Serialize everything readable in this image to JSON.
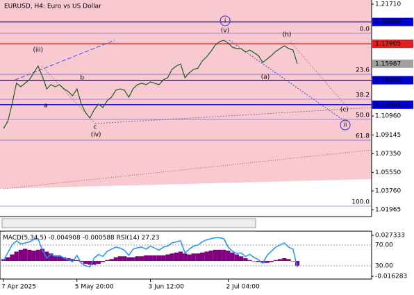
{
  "chart_data": [
    {
      "type": "line",
      "title": "EURUSD, H4:  Euro vs US Dollar",
      "categories": [
        "7 Apr 2025",
        null,
        null,
        null,
        null,
        null,
        null,
        null,
        null,
        null,
        null,
        null,
        null,
        null,
        null,
        null,
        null,
        "5 May 20:00",
        null,
        null,
        null,
        null,
        null,
        null,
        null,
        null,
        null,
        null,
        null,
        null,
        null,
        null,
        null,
        null,
        "3 Jun 12:00",
        null,
        null,
        null,
        null,
        null,
        null,
        null,
        null,
        null,
        null,
        null,
        null,
        null,
        null,
        null,
        null,
        null,
        "2 Jul 04:00",
        null,
        null,
        null,
        null,
        null,
        null,
        null,
        null,
        null,
        null,
        null,
        null,
        null,
        null,
        null,
        null
      ],
      "values": [
        1.0977,
        1.1044,
        1.1211,
        1.1411,
        1.1377,
        1.1411,
        1.1444,
        1.1511,
        1.1577,
        1.1477,
        1.1357,
        1.1397,
        1.1377,
        1.1397,
        1.1357,
        1.1331,
        1.1291,
        1.1357,
        1.1211,
        1.113,
        1.1077,
        1.1157,
        1.1211,
        1.1177,
        1.1244,
        1.1277,
        1.1344,
        1.1357,
        1.1344,
        1.1277,
        1.1357,
        1.1397,
        1.1411,
        1.1397,
        1.1424,
        1.1411,
        1.1397,
        1.1444,
        1.1464,
        1.1544,
        1.1577,
        1.1597,
        1.1464,
        1.1511,
        1.1544,
        1.1557,
        1.1624,
        1.1664,
        1.1717,
        1.1777,
        1.1811,
        1.1824,
        1.1797,
        1.1757,
        1.1744,
        1.1744,
        1.1711,
        1.1731,
        1.1704,
        1.1677,
        1.1611,
        1.1644,
        1.1677,
        1.1717,
        1.1744,
        1.1771,
        1.1744,
        1.1731,
        1.1599
      ],
      "color": "#1a5e1a",
      "ylim": [
        1.013,
        1.2211
      ],
      "yticks": [
        {
          "value": 1.2171,
          "label": "1.21710"
        },
        {
          "value": 1.1096,
          "label": "1.10960"
        },
        {
          "value": 1.09145,
          "label": "1.09145"
        },
        {
          "value": 1.0735,
          "label": "1.07350"
        },
        {
          "value": 1.0555,
          "label": "1.05550"
        },
        {
          "value": 1.0376,
          "label": "1.03760"
        },
        {
          "value": 1.01965,
          "label": "1.01965"
        }
      ],
      "levels": [
        {
          "value": 1.2,
          "label": "1.20000",
          "color": "#0000cd"
        },
        {
          "value": 1.17905,
          "label": "1.17905",
          "color": "#e02020"
        },
        {
          "value": 1.144,
          "label": "1.14400",
          "color": "#0000cd"
        },
        {
          "value": 1.12051,
          "label": "1.12051",
          "color": "#0000cd"
        }
      ],
      "last_price": 1.15987,
      "fib_levels": [
        {
          "value": 1.1891,
          "label": "0.0"
        },
        {
          "value": 1.1497,
          "label": "23.6"
        },
        {
          "value": 1.1257,
          "label": "38.2"
        },
        {
          "value": 1.1064,
          "label": "50.0"
        },
        {
          "value": 1.0864,
          "label": "61.8"
        },
        {
          "value": 1.023,
          "label": "100.0"
        }
      ],
      "annotations": [
        {
          "text": "i",
          "x": 51.3,
          "y": 1.2011,
          "color": "#3030c0",
          "circled": true
        },
        {
          "text": "(v)",
          "x": 51.3,
          "y": 1.1918,
          "color": "#d04040",
          "circled": false
        },
        {
          "text": "(h)",
          "x": 65.6,
          "y": 1.1878,
          "color": "#d04040",
          "circled": false
        },
        {
          "text": "(iii)",
          "x": 8.0,
          "y": 1.1731,
          "color": "#d04040",
          "circled": false
        },
        {
          "text": "(a)",
          "x": 60.6,
          "y": 1.1471,
          "color": "#d04040",
          "circled": false
        },
        {
          "text": "b",
          "x": 18.2,
          "y": 1.1464,
          "color": "#707070",
          "circled": false
        },
        {
          "text": "a",
          "x": 9.8,
          "y": 1.1197,
          "color": "#707070",
          "circled": false
        },
        {
          "text": "(c)",
          "x": 78.9,
          "y": 1.1157,
          "color": "#d04040",
          "circled": false
        },
        {
          "text": "ii",
          "x": 79.1,
          "y": 1.101,
          "color": "#3030c0",
          "circled": true
        },
        {
          "text": "c",
          "x": 21.2,
          "y": 1.099,
          "color": "#707070",
          "circled": false
        },
        {
          "text": "(iv)",
          "x": 21.4,
          "y": 1.0917,
          "color": "#d04040",
          "circled": false
        }
      ]
    },
    {
      "type": "macd_rsi",
      "series": [
        {
          "name": "MACD(5,34,5)",
          "color": "#800080",
          "current": [
            -0.004908,
            -0.000588
          ],
          "values": [
            0.002,
            0.004,
            0.007,
            0.01,
            0.012,
            0.013,
            0.012,
            0.011,
            0.012,
            0.013,
            0.01,
            0.008,
            0.006,
            0.005,
            0.004,
            0.003,
            0.002,
            0.001,
            -0.001,
            -0.003,
            -0.004,
            -0.004,
            -0.003,
            -0.001,
            0.001,
            0.002,
            0.004,
            0.005,
            0.005,
            0.004,
            0.004,
            0.005,
            0.005,
            0.006,
            0.006,
            0.006,
            0.006,
            0.006,
            0.007,
            0.008,
            0.009,
            0.01,
            0.008,
            0.007,
            0.008,
            0.008,
            0.009,
            0.01,
            0.011,
            0.012,
            0.012,
            0.012,
            0.011,
            0.009,
            0.007,
            0.005,
            0.003,
            0.001,
            0.0,
            -0.001,
            -0.002,
            -0.002,
            -0.001,
            0.001,
            0.002,
            0.003,
            0.002,
            0.0,
            -0.004908
          ]
        },
        {
          "name": "RSI(14)",
          "color": "#1e90ff",
          "axis": "y2",
          "current": [
            27.23
          ],
          "values": [
            40,
            55,
            70,
            78,
            72,
            74,
            76,
            80,
            82,
            60,
            45,
            52,
            48,
            50,
            45,
            42,
            38,
            50,
            35,
            30,
            28,
            45,
            52,
            48,
            58,
            62,
            66,
            64,
            60,
            50,
            62,
            65,
            66,
            62,
            68,
            64,
            60,
            66,
            68,
            74,
            76,
            78,
            55,
            62,
            68,
            70,
            76,
            80,
            82,
            84,
            84,
            82,
            66,
            58,
            54,
            55,
            48,
            52,
            46,
            42,
            35,
            50,
            58,
            66,
            70,
            74,
            66,
            62,
            27.23
          ]
        }
      ],
      "ylim": [
        -0.0192,
        0.0318
      ],
      "yticks": [
        0.027333,
        -0.016283
      ],
      "y2lim": [
        4.7,
        96.7
      ],
      "y2ticks": [
        {
          "value": 70,
          "label": "70.00"
        },
        {
          "value": 30,
          "label": "30.00"
        }
      ]
    }
  ]
}
